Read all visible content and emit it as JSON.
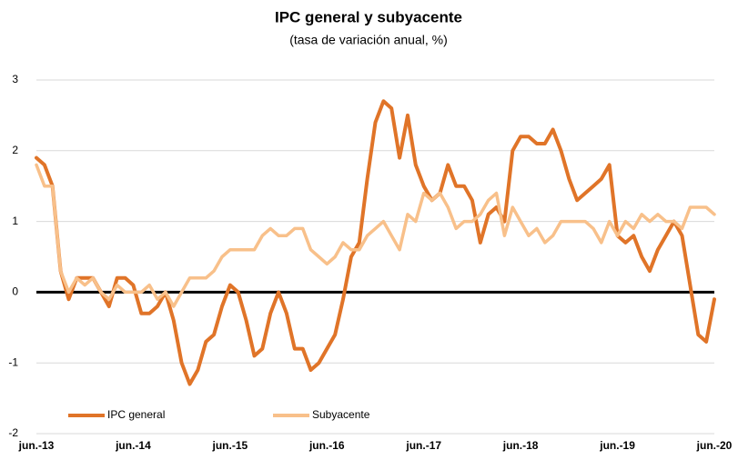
{
  "chart_data": {
    "type": "line",
    "title": "IPC general y subyacente",
    "subtitle": "(tasa de variación anual, %)",
    "categories": [
      "jun.-13",
      null,
      null,
      null,
      null,
      null,
      null,
      null,
      null,
      null,
      null,
      null,
      "jun.-14",
      null,
      null,
      null,
      null,
      null,
      null,
      null,
      null,
      null,
      null,
      null,
      "jun.-15",
      null,
      null,
      null,
      null,
      null,
      null,
      null,
      null,
      null,
      null,
      null,
      "jun.-16",
      null,
      null,
      null,
      null,
      null,
      null,
      null,
      null,
      null,
      null,
      null,
      "jun.-17",
      null,
      null,
      null,
      null,
      null,
      null,
      null,
      null,
      null,
      null,
      null,
      "jun.-18",
      null,
      null,
      null,
      null,
      null,
      null,
      null,
      null,
      null,
      null,
      null,
      "jun.-19",
      null,
      null,
      null,
      null,
      null,
      null,
      null,
      null,
      null,
      null,
      null,
      "jun.-20"
    ],
    "series": [
      {
        "name": "IPC general",
        "color": "#e07428",
        "values": [
          1.9,
          1.8,
          1.5,
          0.3,
          -0.1,
          0.2,
          0.2,
          0.2,
          0.0,
          -0.2,
          0.2,
          0.2,
          0.1,
          -0.3,
          -0.3,
          -0.2,
          0.0,
          -0.4,
          -1.0,
          -1.3,
          -1.1,
          -0.7,
          -0.6,
          -0.2,
          0.1,
          0.0,
          -0.4,
          -0.9,
          -0.8,
          -0.3,
          0.0,
          -0.3,
          -0.8,
          -0.8,
          -1.1,
          -1.0,
          -0.8,
          -0.6,
          -0.1,
          0.5,
          0.7,
          1.6,
          2.4,
          2.7,
          2.6,
          1.9,
          2.5,
          1.8,
          1.5,
          1.3,
          1.4,
          1.8,
          1.5,
          1.5,
          1.3,
          0.7,
          1.1,
          1.2,
          1.0,
          2.0,
          2.2,
          2.2,
          2.1,
          2.1,
          2.3,
          2.0,
          1.6,
          1.3,
          1.4,
          1.5,
          1.6,
          1.8,
          0.8,
          0.7,
          0.8,
          0.5,
          0.3,
          0.6,
          0.8,
          1.0,
          0.8,
          0.1,
          -0.6,
          -0.7,
          -0.1
        ]
      },
      {
        "name": "Subyacente",
        "color": "#f8c08a",
        "values": [
          1.8,
          1.5,
          1.5,
          0.3,
          0.0,
          0.2,
          0.1,
          0.2,
          0.0,
          -0.1,
          0.1,
          0.0,
          0.0,
          0.0,
          0.1,
          -0.1,
          0.0,
          -0.2,
          0.0,
          0.2,
          0.2,
          0.2,
          0.3,
          0.5,
          0.6,
          0.6,
          0.6,
          0.6,
          0.8,
          0.9,
          0.8,
          0.8,
          0.9,
          0.9,
          0.6,
          0.5,
          0.4,
          0.5,
          0.7,
          0.6,
          0.6,
          0.8,
          0.9,
          1.0,
          0.8,
          0.6,
          1.1,
          1.0,
          1.4,
          1.3,
          1.4,
          1.2,
          0.9,
          1.0,
          1.0,
          1.1,
          1.3,
          1.4,
          0.8,
          1.2,
          1.0,
          0.8,
          0.9,
          0.7,
          0.8,
          1.0,
          1.0,
          1.0,
          1.0,
          0.9,
          0.7,
          1.0,
          0.8,
          1.0,
          0.9,
          1.1,
          1.0,
          1.1,
          1.0,
          1.0,
          0.9,
          1.2,
          1.2,
          1.2,
          1.1
        ]
      }
    ],
    "ylim": [
      -2,
      3
    ],
    "yticks": [
      -2,
      -1,
      0,
      1,
      2,
      3
    ],
    "grid": true,
    "legend": "lower left"
  }
}
